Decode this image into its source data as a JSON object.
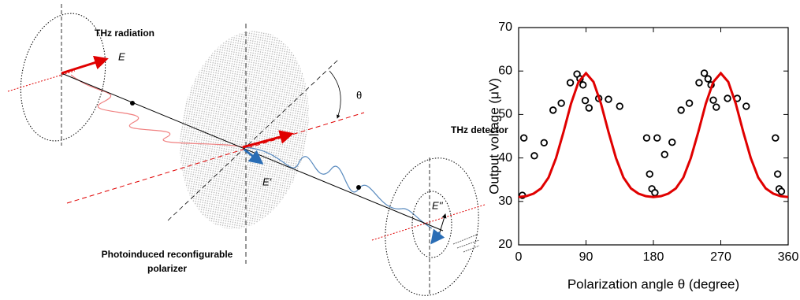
{
  "diagram": {
    "source_label": "THz radiation",
    "field_label": "E",
    "angle_label": "θ",
    "detector_label": "THz detector",
    "field_label_after_polarizer": "E'",
    "field_label_at_detector": "E''",
    "polarizer_label": [
      "Photoinduced reconfigurable",
      "polarizer"
    ]
  },
  "chart_data": {
    "type": "scatter",
    "xlabel": "Polarization angle θ (degree)",
    "ylabel": "Output voltage (μV)",
    "xlim": [
      0,
      360
    ],
    "xticks": [
      0,
      90,
      180,
      270,
      360
    ],
    "ylim": [
      20,
      70
    ],
    "yticks": [
      20,
      30,
      40,
      50,
      60,
      70
    ],
    "series": [
      {
        "style": "markers",
        "color": "#000000",
        "x": [
          5,
          7,
          21,
          34,
          46,
          57,
          69,
          78,
          82,
          86,
          89,
          94,
          107,
          120,
          135,
          171,
          175,
          178,
          182,
          185,
          195,
          205,
          217,
          228,
          241,
          248,
          253,
          257,
          260,
          264,
          279,
          292,
          304,
          343,
          346,
          348,
          351
        ],
        "values": [
          31.4,
          44.6,
          40.5,
          43.5,
          51.0,
          52.6,
          57.3,
          59.3,
          58.2,
          56.8,
          53.2,
          51.5,
          53.7,
          53.5,
          51.9,
          44.6,
          36.3,
          32.9,
          32.0,
          44.6,
          40.8,
          43.6,
          51.0,
          52.6,
          57.3,
          59.5,
          58.2,
          56.8,
          53.3,
          51.7,
          53.7,
          53.7,
          51.9,
          44.6,
          36.3,
          32.9,
          32.3
        ]
      },
      {
        "style": "line",
        "color": "#e00000",
        "x": [
          0,
          10,
          20,
          30,
          40,
          50,
          60,
          70,
          80,
          90,
          100,
          110,
          120,
          130,
          140,
          150,
          160,
          170,
          180,
          190,
          200,
          210,
          220,
          230,
          240,
          250,
          260,
          270,
          280,
          290,
          300,
          310,
          320,
          330,
          340,
          350,
          360
        ],
        "values": [
          31,
          31.2,
          31.8,
          33,
          35.5,
          40,
          46,
          52.5,
          57.5,
          59.5,
          57.5,
          52.5,
          46,
          40,
          35.5,
          33,
          31.8,
          31.2,
          31,
          31.2,
          31.8,
          33,
          35.5,
          40,
          46,
          52.5,
          57.5,
          59.5,
          57.5,
          52.5,
          46,
          40,
          35.5,
          33,
          31.8,
          31.2,
          31
        ]
      }
    ]
  }
}
